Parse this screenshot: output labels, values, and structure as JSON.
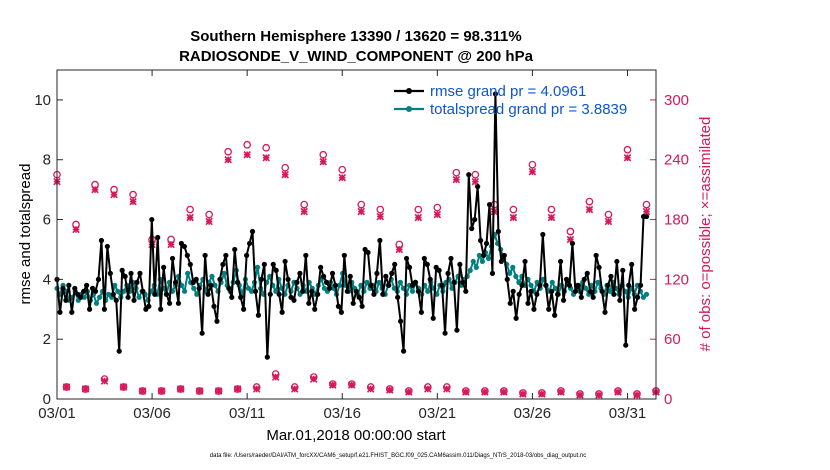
{
  "chart_data": {
    "type": "line",
    "title": "Southern Hemisphere 13390 / 13620 = 98.311%",
    "subtitle": "RADIOSONDE_V_WIND_COMPONENT @ 200 hPa",
    "xlabel": "Mar.01,2018 00:00:00 start",
    "ylabel": "rmse and totalspread",
    "y2label": "# of obs: o=possible; ×=assimilated",
    "footer": "data file: /Users/raeder/DAI/ATM_forcXX/CAM6_setup/f.e21.FHIST_BGC.f09_025.CAM6assim.011/Diags_NTrS_2018-03/obs_diag_output.nc",
    "xlim": [
      0,
      31.5
    ],
    "ylim": [
      0,
      11
    ],
    "y2lim": [
      0,
      330
    ],
    "x_ticks": [
      0,
      5,
      10,
      15,
      20,
      25,
      30
    ],
    "x_tick_labels": [
      "03/01",
      "03/06",
      "03/11",
      "03/16",
      "03/21",
      "03/26",
      "03/31"
    ],
    "y_ticks": [
      0,
      2,
      4,
      6,
      8,
      10
    ],
    "y_tick_labels": [
      "0",
      "2",
      "4",
      "6",
      "8",
      "10"
    ],
    "y2_ticks": [
      0,
      60,
      120,
      180,
      240,
      300
    ],
    "y2_tick_labels": [
      "0",
      "60",
      "120",
      "180",
      "240",
      "300"
    ],
    "colors": {
      "rmse": "#000000",
      "spread": "#008080",
      "obs": "#d6185b",
      "legend_text": "#0b57d0"
    },
    "series": [
      {
        "name": "rmse grand pr = 4.0961",
        "axis": "left",
        "values": [
          4.0,
          2.9,
          3.7,
          3.3,
          3.8,
          2.9,
          3.7,
          3.5,
          3.4,
          3.6,
          3.8,
          3.0,
          3.7,
          3.6,
          4.0,
          5.3,
          3.0,
          5.1,
          4.2,
          3.5,
          3.3,
          1.6,
          4.3,
          4.1,
          3.4,
          4.2,
          3.3,
          3.9,
          4.2,
          3.6,
          3.0,
          3.1,
          6.0,
          3.5,
          5.4,
          3.0,
          4.4,
          3.5,
          3.2,
          4.7,
          3.9,
          3.2,
          5.2,
          5.1,
          4.8,
          4.5,
          3.9,
          4.0,
          3.7,
          2.2,
          4.8,
          3.5,
          3.8,
          3.1,
          2.6,
          4.0,
          4.5,
          4.8,
          3.7,
          3.4,
          5.0,
          3.9,
          3.4,
          3.0,
          4.8,
          5.2,
          5.6,
          3.6,
          2.8,
          4.0,
          4.5,
          1.4,
          3.5,
          4.5,
          4.3,
          3.5,
          2.9,
          4.6,
          4.0,
          3.4,
          3.3,
          3.9,
          4.2,
          3.6,
          4.8,
          3.2,
          3.6,
          3.0,
          3.5,
          4.4,
          4.1,
          3.9,
          3.7,
          4.2,
          3.8,
          3.1,
          2.9,
          4.8,
          3.6,
          4.1,
          3.2,
          3.6,
          3.4,
          3.1,
          5.0,
          4.9,
          3.8,
          3.5,
          4.2,
          5.3,
          3.5,
          4.1,
          3.8,
          4.2,
          4.5,
          3.4,
          2.6,
          1.6,
          4.7,
          4.4,
          3.8,
          3.9,
          3.6,
          2.9,
          4.7,
          4.5,
          4.0,
          2.7,
          4.4,
          4.3,
          3.8,
          2.2,
          4.2,
          4.7,
          3.9,
          2.3,
          4.5,
          3.9,
          3.6,
          7.5,
          5.7,
          6.0,
          7.1,
          5.3,
          4.8,
          5.2,
          6.5,
          4.2,
          10.2,
          5.6,
          4.6,
          4.8,
          4.0,
          3.2,
          3.6,
          2.7,
          3.5,
          3.8,
          4.6,
          3.2,
          3.6,
          3.0,
          3.5,
          3.8,
          5.5,
          3.8,
          3.0,
          3.6,
          2.8,
          3.5,
          4.6,
          3.3,
          4.0,
          3.8,
          5.2,
          3.6,
          3.8,
          3.4,
          4.0,
          4.2,
          3.6,
          3.4,
          4.8,
          4.4,
          3.6,
          2.9,
          3.8,
          4.1,
          3.5,
          4.6,
          3.3,
          4.3,
          1.8,
          3.8,
          4.5,
          3.0,
          3.4,
          3.8,
          6.1,
          6.1
        ]
      },
      {
        "name": "totalspread grand pr = 3.8839",
        "axis": "left",
        "values": [
          3.7,
          3.5,
          3.8,
          3.6,
          3.3,
          3.4,
          3.6,
          3.3,
          3.5,
          3.4,
          3.6,
          3.3,
          3.5,
          3.2,
          3.4,
          3.6,
          3.3,
          3.5,
          3.4,
          3.8,
          3.6,
          3.4,
          3.6,
          3.8,
          3.6,
          3.9,
          3.7,
          3.4,
          3.6,
          3.5,
          3.3,
          3.6,
          3.8,
          3.5,
          4.0,
          3.7,
          3.5,
          3.9,
          3.6,
          3.8,
          4.1,
          3.8,
          3.6,
          4.2,
          3.9,
          3.7,
          3.5,
          3.8,
          4.0,
          3.6,
          3.9,
          4.1,
          3.8,
          3.6,
          3.9,
          4.2,
          3.8,
          3.6,
          3.9,
          4.3,
          3.8,
          3.5,
          4.0,
          3.7,
          3.6,
          3.9,
          4.4,
          3.7,
          3.5,
          3.9,
          4.1,
          3.8,
          3.6,
          4.0,
          3.7,
          3.5,
          3.8,
          3.6,
          3.9,
          3.7,
          3.5,
          3.8,
          3.6,
          3.9,
          3.7,
          3.5,
          3.8,
          4.0,
          3.7,
          3.6,
          3.9,
          3.7,
          3.5,
          3.8,
          4.2,
          3.8,
          3.6,
          3.9,
          3.7,
          3.5,
          3.8,
          3.6,
          3.9,
          3.7,
          3.8,
          3.6,
          3.9,
          3.7,
          3.5,
          3.8,
          4.0,
          3.7,
          3.6,
          3.9,
          3.7,
          3.5,
          3.8,
          3.6,
          3.9,
          3.7,
          3.5,
          3.8,
          3.6,
          3.9,
          3.7,
          3.5,
          3.8,
          3.6,
          3.9,
          4.0,
          3.7,
          3.9,
          4.1,
          3.8,
          4.0,
          4.1,
          4.3,
          4.6,
          4.4,
          4.8,
          4.6,
          4.9,
          4.7,
          5.1,
          5.5,
          5.2,
          5.0,
          4.7,
          4.5,
          4.2,
          4.4,
          4.1,
          3.9,
          4.1,
          3.8,
          4.0,
          3.8,
          3.6,
          3.9,
          3.7,
          4.0,
          3.8,
          3.6,
          3.9,
          3.7,
          3.5,
          3.8,
          3.6,
          3.9,
          3.7,
          3.5,
          3.8,
          3.6,
          3.9,
          3.7,
          3.5,
          3.8,
          3.6,
          3.9,
          3.7,
          3.5,
          3.8,
          3.6,
          3.9,
          3.7,
          3.5,
          3.8,
          3.6,
          3.4,
          3.7,
          3.5,
          3.8,
          3.6,
          3.4,
          3.5
        ]
      }
    ],
    "obs_possible": [
      [
        0.0,
        225
      ],
      [
        0.5,
        12
      ],
      [
        1.0,
        175
      ],
      [
        1.5,
        10
      ],
      [
        2.0,
        215
      ],
      [
        2.5,
        20
      ],
      [
        3.0,
        210
      ],
      [
        3.5,
        12
      ],
      [
        4.0,
        205
      ],
      [
        4.5,
        8
      ],
      [
        5.0,
        160
      ],
      [
        5.5,
        8
      ],
      [
        6.0,
        160
      ],
      [
        6.5,
        10
      ],
      [
        7.0,
        190
      ],
      [
        7.5,
        8
      ],
      [
        8.0,
        185
      ],
      [
        8.5,
        8
      ],
      [
        9.0,
        248
      ],
      [
        9.5,
        10
      ],
      [
        10.0,
        255
      ],
      [
        10.5,
        12
      ],
      [
        11.0,
        252
      ],
      [
        11.5,
        25
      ],
      [
        12.0,
        232
      ],
      [
        12.5,
        12
      ],
      [
        13.0,
        195
      ],
      [
        13.5,
        22
      ],
      [
        14.0,
        245
      ],
      [
        14.5,
        15
      ],
      [
        15.0,
        230
      ],
      [
        15.5,
        15
      ],
      [
        16.0,
        195
      ],
      [
        16.5,
        12
      ],
      [
        17.0,
        190
      ],
      [
        17.5,
        10
      ],
      [
        18.0,
        155
      ],
      [
        18.5,
        8
      ],
      [
        19.0,
        190
      ],
      [
        19.5,
        12
      ],
      [
        20.0,
        192
      ],
      [
        20.5,
        12
      ],
      [
        21.0,
        227
      ],
      [
        21.5,
        8
      ],
      [
        22.0,
        225
      ],
      [
        22.5,
        8
      ],
      [
        23.0,
        195
      ],
      [
        23.5,
        8
      ],
      [
        24.0,
        190
      ],
      [
        24.5,
        6
      ],
      [
        25.0,
        235
      ],
      [
        25.5,
        6
      ],
      [
        26.0,
        190
      ],
      [
        26.5,
        8
      ],
      [
        27.0,
        168
      ],
      [
        27.5,
        5
      ],
      [
        28.0,
        198
      ],
      [
        28.5,
        5
      ],
      [
        29.0,
        185
      ],
      [
        29.5,
        8
      ],
      [
        30.0,
        250
      ],
      [
        30.5,
        5
      ],
      [
        31.0,
        195
      ],
      [
        31.5,
        8
      ]
    ],
    "obs_assimilated": [
      [
        0.0,
        218
      ],
      [
        0.5,
        12
      ],
      [
        1.0,
        170
      ],
      [
        1.5,
        10
      ],
      [
        2.0,
        210
      ],
      [
        2.5,
        18
      ],
      [
        3.0,
        205
      ],
      [
        3.5,
        12
      ],
      [
        4.0,
        198
      ],
      [
        4.5,
        8
      ],
      [
        5.0,
        155
      ],
      [
        5.5,
        8
      ],
      [
        6.0,
        155
      ],
      [
        6.5,
        10
      ],
      [
        7.0,
        182
      ],
      [
        7.5,
        8
      ],
      [
        8.0,
        178
      ],
      [
        8.5,
        8
      ],
      [
        9.0,
        240
      ],
      [
        9.5,
        10
      ],
      [
        10.0,
        245
      ],
      [
        10.5,
        10
      ],
      [
        11.0,
        242
      ],
      [
        11.5,
        22
      ],
      [
        12.0,
        225
      ],
      [
        12.5,
        10
      ],
      [
        13.0,
        188
      ],
      [
        13.5,
        20
      ],
      [
        14.0,
        238
      ],
      [
        14.5,
        14
      ],
      [
        15.0,
        222
      ],
      [
        15.5,
        14
      ],
      [
        16.0,
        188
      ],
      [
        16.5,
        10
      ],
      [
        17.0,
        183
      ],
      [
        17.5,
        9
      ],
      [
        18.0,
        150
      ],
      [
        18.5,
        7
      ],
      [
        19.0,
        182
      ],
      [
        19.5,
        10
      ],
      [
        20.0,
        185
      ],
      [
        20.5,
        10
      ],
      [
        21.0,
        220
      ],
      [
        21.5,
        7
      ],
      [
        22.0,
        218
      ],
      [
        22.5,
        7
      ],
      [
        23.0,
        188
      ],
      [
        23.5,
        7
      ],
      [
        24.0,
        182
      ],
      [
        24.5,
        5
      ],
      [
        25.0,
        228
      ],
      [
        25.5,
        5
      ],
      [
        26.0,
        182
      ],
      [
        26.5,
        7
      ],
      [
        27.0,
        160
      ],
      [
        27.5,
        4
      ],
      [
        28.0,
        190
      ],
      [
        28.5,
        4
      ],
      [
        29.0,
        178
      ],
      [
        29.5,
        7
      ],
      [
        30.0,
        242
      ],
      [
        30.5,
        4
      ],
      [
        31.0,
        188
      ],
      [
        31.5,
        7
      ]
    ]
  }
}
